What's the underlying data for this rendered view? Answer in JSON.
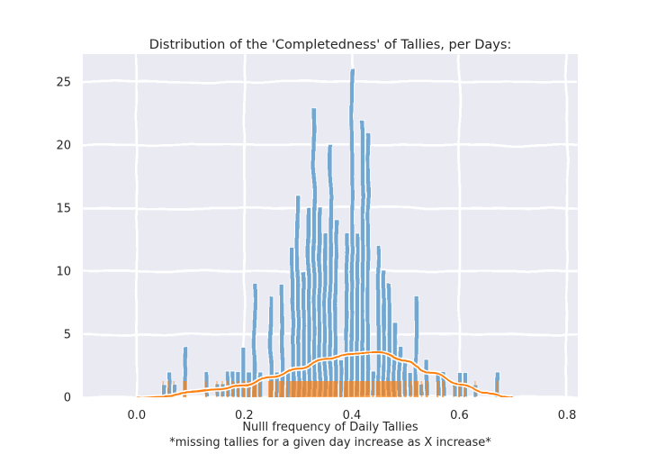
{
  "chart_data": {
    "type": "bar",
    "title": "Distribution of the 'Completedness' of Tallies, per Days:",
    "xlabel": "Nulll frequency of Daily Tallies",
    "xlabel_note": "*missing tallies for a given day increase as X increase*",
    "ylabel": "",
    "xlim": [
      -0.1,
      0.82
    ],
    "ylim": [
      0,
      27.2
    ],
    "xticks": [
      "0.0",
      "0.2",
      "0.4",
      "0.6",
      "0.8"
    ],
    "xtick_values": [
      0.0,
      0.2,
      0.4,
      0.6,
      0.8
    ],
    "yticks": [
      "0",
      "5",
      "10",
      "15",
      "20",
      "25"
    ],
    "ytick_values": [
      0,
      5,
      10,
      15,
      20,
      25
    ],
    "grid": true,
    "style": "xkcd",
    "bin_width": 0.0085,
    "x": [
      0.05,
      0.06,
      0.07,
      0.09,
      0.13,
      0.15,
      0.16,
      0.17,
      0.18,
      0.19,
      0.2,
      0.21,
      0.22,
      0.23,
      0.25,
      0.26,
      0.27,
      0.28,
      0.29,
      0.3,
      0.31,
      0.32,
      0.33,
      0.34,
      0.35,
      0.36,
      0.37,
      0.38,
      0.39,
      0.4,
      0.41,
      0.42,
      0.43,
      0.44,
      0.45,
      0.46,
      0.47,
      0.48,
      0.49,
      0.5,
      0.51,
      0.52,
      0.53,
      0.54,
      0.56,
      0.57,
      0.59,
      0.6,
      0.61,
      0.63,
      0.67
    ],
    "values": [
      1,
      2,
      1,
      4,
      2,
      1,
      1,
      2,
      2,
      2,
      4,
      2,
      9,
      2,
      8,
      2,
      9,
      2,
      12,
      16,
      10,
      15,
      23,
      15,
      13,
      20,
      14,
      3,
      13,
      26,
      13,
      22,
      21,
      2,
      12,
      10,
      9,
      6,
      4,
      3,
      2,
      8,
      1,
      3,
      2,
      2,
      1,
      2,
      2,
      1,
      2
    ],
    "kde": {
      "color": "#ff7f0e",
      "x": [
        0.0,
        0.05,
        0.1,
        0.15,
        0.2,
        0.25,
        0.3,
        0.35,
        0.4,
        0.45,
        0.5,
        0.55,
        0.6,
        0.65,
        0.7
      ],
      "y": [
        0.0,
        0.1,
        0.35,
        0.55,
        0.9,
        1.6,
        2.3,
        3.0,
        3.5,
        3.5,
        2.9,
        1.9,
        1.0,
        0.35,
        0.0
      ]
    },
    "bar_color": "#6ba3d0",
    "rug_color": "#ff7f0e"
  }
}
